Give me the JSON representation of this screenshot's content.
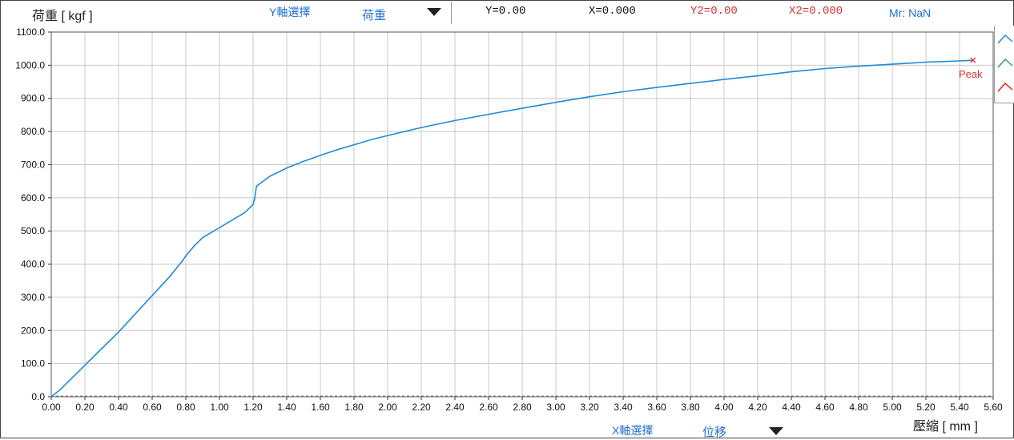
{
  "header": {
    "y_axis_select_label": "Y軸選擇",
    "y_axis_select_value": "荷重",
    "readout_y": "Y=0.00",
    "readout_x": "X=0.000",
    "readout_y2": "Y2=0.00",
    "readout_x2": "X2=0.000",
    "readout_mr": "Mr: NaN"
  },
  "footer": {
    "x_axis_select_label": "X軸選擇",
    "x_axis_select_value": "位移"
  },
  "legend_icons": [
    "line-icon",
    "line-icon",
    "line-icon"
  ],
  "colors": {
    "series": "#1f8ad8",
    "peak": "#e03030",
    "readout_blue": "#1f6fd0",
    "readout_red": "#d03030",
    "legend_green": "#2aa84a",
    "legend_red": "#e02020",
    "grid": "#c8c8c8"
  },
  "chart_data": {
    "type": "line",
    "xlabel": "壓縮 [ mm ]",
    "ylabel": "荷重 [ kgf ]",
    "xlim": [
      0,
      5.6
    ],
    "ylim": [
      0,
      1100
    ],
    "grid": true,
    "x_ticks": [
      "0.00",
      "0.20",
      "0.40",
      "0.60",
      "0.80",
      "1.00",
      "1.20",
      "1.40",
      "1.60",
      "1.80",
      "2.00",
      "2.20",
      "2.40",
      "2.60",
      "2.80",
      "3.00",
      "3.20",
      "3.40",
      "3.60",
      "3.80",
      "4.00",
      "4.20",
      "4.40",
      "4.60",
      "4.80",
      "5.00",
      "5.20",
      "5.40",
      "5.60"
    ],
    "y_ticks": [
      "0.0",
      "100.0",
      "200.0",
      "300.0",
      "400.0",
      "500.0",
      "600.0",
      "700.0",
      "800.0",
      "900.0",
      "1000.0",
      "1100.0"
    ],
    "series": [
      {
        "x": [
          0.0,
          0.05,
          0.1,
          0.2,
          0.3,
          0.4,
          0.5,
          0.6,
          0.7,
          0.78,
          0.8,
          0.85,
          0.9,
          1.0,
          1.05,
          1.1,
          1.15,
          1.2,
          1.21,
          1.22,
          1.3,
          1.4,
          1.5,
          1.6,
          1.7,
          1.8,
          1.9,
          2.0,
          2.2,
          2.4,
          2.6,
          2.8,
          3.0,
          3.2,
          3.4,
          3.6,
          3.8,
          4.0,
          4.2,
          4.4,
          4.6,
          4.8,
          5.0,
          5.2,
          5.4,
          5.48
        ],
        "y": [
          0,
          20,
          45,
          95,
          145,
          195,
          250,
          305,
          360,
          410,
          425,
          455,
          480,
          510,
          525,
          540,
          555,
          580,
          600,
          635,
          665,
          690,
          710,
          728,
          745,
          760,
          775,
          788,
          812,
          833,
          852,
          870,
          888,
          905,
          920,
          933,
          945,
          957,
          968,
          980,
          990,
          997,
          1003,
          1009,
          1013,
          1015
        ]
      }
    ],
    "annotations": [
      {
        "label": "Peak",
        "x": 5.48,
        "y": 1015
      }
    ]
  }
}
